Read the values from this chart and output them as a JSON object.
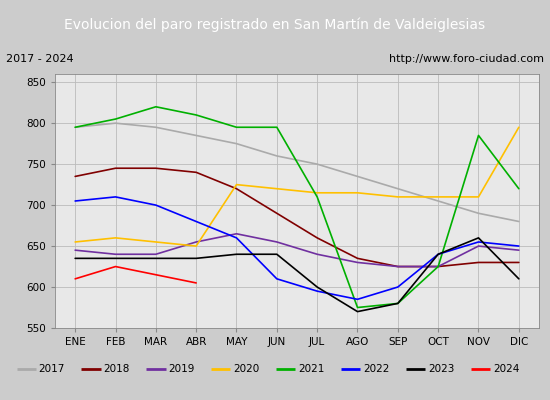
{
  "title": "Evolucion del paro registrado en San Martín de Valdeiglesias",
  "title_color": "#4472c4",
  "subtitle_left": "2017 - 2024",
  "subtitle_right": "http://www.foro-ciudad.com",
  "xlabel_months": [
    "ENE",
    "FEB",
    "MAR",
    "ABR",
    "MAY",
    "JUN",
    "JUL",
    "AGO",
    "SEP",
    "OCT",
    "NOV",
    "DIC"
  ],
  "ylim": [
    550,
    860
  ],
  "yticks": [
    550,
    600,
    650,
    700,
    750,
    800,
    850
  ],
  "series": {
    "2017": {
      "color": "#aaaaaa",
      "values": [
        795,
        800,
        795,
        785,
        775,
        760,
        750,
        735,
        720,
        705,
        690,
        680
      ]
    },
    "2018": {
      "color": "#800000",
      "values": [
        735,
        745,
        745,
        740,
        720,
        690,
        660,
        635,
        625,
        625,
        630,
        630
      ]
    },
    "2019": {
      "color": "#7030a0",
      "values": [
        645,
        640,
        640,
        655,
        665,
        655,
        640,
        630,
        625,
        625,
        650,
        645
      ]
    },
    "2020": {
      "color": "#ffc000",
      "values": [
        655,
        660,
        655,
        650,
        725,
        720,
        715,
        715,
        710,
        710,
        710,
        795
      ]
    },
    "2021": {
      "color": "#00b000",
      "values": [
        795,
        805,
        820,
        810,
        795,
        795,
        710,
        575,
        580,
        625,
        785,
        720
      ]
    },
    "2022": {
      "color": "#0000ff",
      "values": [
        705,
        710,
        700,
        680,
        660,
        610,
        595,
        585,
        600,
        640,
        655,
        650
      ]
    },
    "2023": {
      "color": "#000000",
      "values": [
        635,
        635,
        635,
        635,
        640,
        640,
        600,
        570,
        580,
        640,
        660,
        610
      ]
    },
    "2024": {
      "color": "#ff0000",
      "values": [
        610,
        625,
        615,
        605,
        null,
        null,
        null,
        null,
        null,
        null,
        null,
        null
      ]
    }
  },
  "background_color": "#e8e8e8",
  "plot_bg_color": "#e8e8e8",
  "grid_color": "#bbbbbb",
  "title_bg": "#4472c4"
}
